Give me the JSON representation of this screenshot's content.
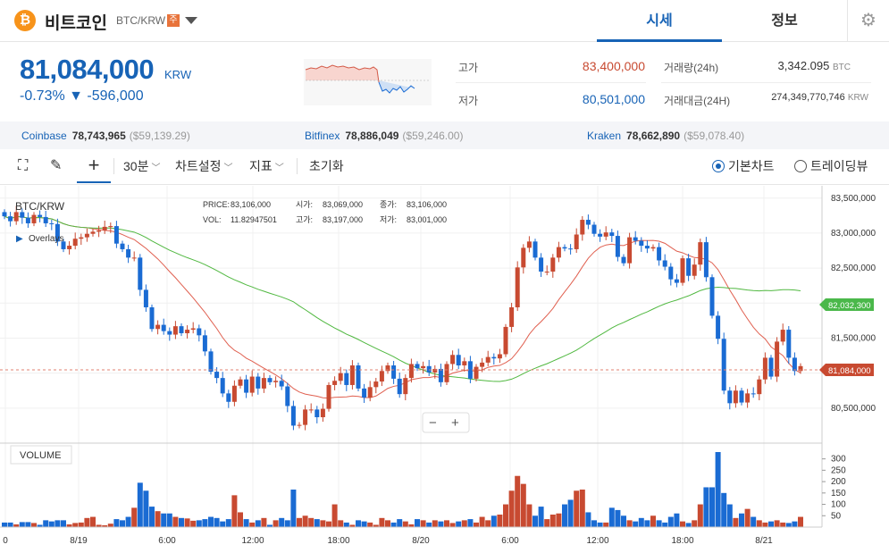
{
  "header": {
    "coin_icon": "bitcoin-icon",
    "coin_name": "비트코인",
    "symbol": "BTC/KRW",
    "warning_badge": "주",
    "tab_price": "시세",
    "tab_info": "정보",
    "settings_icon": "gear-icon"
  },
  "summary": {
    "price": "81,084,000",
    "unit": "KRW",
    "change": "-0.73% ▼ -596,000",
    "high_label": "고가",
    "high": "83,400,000",
    "low_label": "저가",
    "low": "80,501,000",
    "vol_label": "거래량(24h)",
    "vol": "3,342.095",
    "vol_unit": "BTC",
    "amt_label": "거래대금(24H)",
    "amt": "274,349,770,746",
    "amt_unit": "KRW"
  },
  "exchanges": [
    {
      "name": "Coinbase",
      "price": "78,743,965",
      "usd": "($59,139.29)"
    },
    {
      "name": "Bitfinex",
      "price": "78,886,049",
      "usd": "($59,246.00)"
    },
    {
      "name": "Kraken",
      "price": "78,662,890",
      "usd": "($59,078.40)"
    }
  ],
  "toolbar": {
    "interval": "30분",
    "chart_settings": "차트설정",
    "indicators": "지표",
    "reset": "초기화",
    "basic_chart": "기본차트",
    "tradingview": "트레이딩뷰"
  },
  "chart": {
    "symbol_label": "BTC/KRW",
    "overlays_label": "Overlays",
    "info_price_label": "PRICE:",
    "info_price": "83,106,000",
    "info_vol_label": "VOL:",
    "info_vol": "11.82947501",
    "info_open_label": "시가:",
    "info_open": "83,069,000",
    "info_high_label": "고가:",
    "info_high": "83,197,000",
    "info_close_label": "종가:",
    "info_close": "83,106,000",
    "info_low_label": "저가:",
    "info_low": "83,001,000",
    "zoom_out": "−",
    "zoom_in": "+",
    "volume_label": "VOLUME",
    "price_ticks": [
      "83,500,000",
      "83,000,000",
      "82,500,000",
      "81,500,000",
      "80,500,000"
    ],
    "ma_tag": "82,032,300",
    "last_tag": "81,084,000",
    "vol_ticks": [
      "300",
      "250",
      "200",
      "150",
      "100",
      "50"
    ],
    "x_ticks": [
      "0",
      "8/19",
      "6:00",
      "12:00",
      "18:00",
      "8/20",
      "6:00",
      "12:00",
      "18:00",
      "8/21"
    ],
    "up_color": "#c84a31",
    "down_color": "#1a6bd3",
    "ma_short_color": "#e06050",
    "ma_long_color": "#50b840"
  },
  "chart_data": {
    "type": "candlestick",
    "unit": "KRW",
    "ylim": [
      80000000,
      83650000
    ],
    "close": [
      83240000,
      83170000,
      83300000,
      83220000,
      83140000,
      83260000,
      83230000,
      83140000,
      83130000,
      82880000,
      82770000,
      82820000,
      82920000,
      82940000,
      82990000,
      83020000,
      83040000,
      83090000,
      83100000,
      82850000,
      82770000,
      82650000,
      82650000,
      82190000,
      81940000,
      81630000,
      81690000,
      81600000,
      81550000,
      81670000,
      81570000,
      81620000,
      81640000,
      81540000,
      81310000,
      81020000,
      80930000,
      80710000,
      80590000,
      80820000,
      80910000,
      80720000,
      80950000,
      80780000,
      80930000,
      80870000,
      80890000,
      80810000,
      80530000,
      80250000,
      80260000,
      80480000,
      80480000,
      80370000,
      80490000,
      80830000,
      80890000,
      81000000,
      80830000,
      81110000,
      80780000,
      80650000,
      80800000,
      80880000,
      81030000,
      81110000,
      80920000,
      80700000,
      80930000,
      81130000,
      81070000,
      81100000,
      81010000,
      81060000,
      80870000,
      81130000,
      81260000,
      81110000,
      81170000,
      80920000,
      81090000,
      81150000,
      81230000,
      81210000,
      81270000,
      81660000,
      81940000,
      82510000,
      82790000,
      82880000,
      82650000,
      82450000,
      82450000,
      82650000,
      82800000,
      82780000,
      82770000,
      82980000,
      83190000,
      83120000,
      82990000,
      82950000,
      83010000,
      82960000,
      82660000,
      82570000,
      82940000,
      82890000,
      82820000,
      82780000,
      82800000,
      82610000,
      82520000,
      82340000,
      82290000,
      82640000,
      82390000,
      82550000,
      82870000,
      82370000,
      81820000,
      81490000,
      80750000,
      80570000,
      80750000,
      80580000,
      80710000,
      80700000,
      80910000,
      81220000,
      80950000,
      81450000,
      81620000,
      81220000,
      81030000,
      81100000
    ],
    "volume": [
      20,
      20,
      12,
      22,
      22,
      18,
      10,
      30,
      25,
      30,
      30,
      12,
      18,
      20,
      40,
      45,
      10,
      8,
      15,
      35,
      30,
      45,
      85,
      195,
      160,
      90,
      70,
      60,
      60,
      45,
      40,
      38,
      28,
      30,
      35,
      45,
      40,
      25,
      35,
      140,
      65,
      35,
      20,
      30,
      40,
      10,
      30,
      40,
      30,
      165,
      40,
      50,
      40,
      35,
      30,
      25,
      100,
      30,
      20,
      10,
      30,
      25,
      20,
      10,
      40,
      30,
      20,
      35,
      25,
      12,
      35,
      30,
      20,
      30,
      25,
      30,
      18,
      25,
      30,
      35,
      20,
      45,
      30,
      50,
      55,
      100,
      160,
      225,
      190,
      100,
      50,
      90,
      35,
      55,
      60,
      100,
      120,
      160,
      165,
      65,
      30,
      20,
      20,
      85,
      75,
      50,
      30,
      25,
      40,
      30,
      50,
      30,
      20,
      45,
      60,
      25,
      18,
      30,
      100,
      175,
      175,
      330,
      150,
      100,
      40,
      60,
      80,
      45,
      30,
      20,
      25,
      30,
      20,
      18,
      25,
      45
    ]
  }
}
